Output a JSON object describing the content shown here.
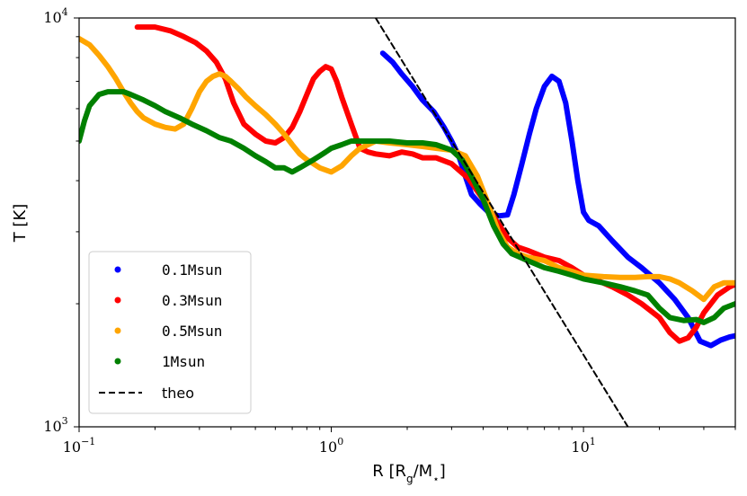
{
  "chart_data": {
    "type": "line",
    "xscale": "log",
    "yscale": "log",
    "xlim": [
      0.1,
      40
    ],
    "ylim": [
      1000,
      10000
    ],
    "xlabel": "R [R",
    "xlabel_sub": "g",
    "xlabel_rest": "/M",
    "xlabel_sub2": "⋆",
    "xlabel_end": "]",
    "ylabel": "T [K]",
    "x_ticks": [
      {
        "value": 0.1,
        "base": "10",
        "exp": "−1"
      },
      {
        "value": 1,
        "base": "10",
        "exp": "0"
      },
      {
        "value": 10,
        "base": "10",
        "exp": "1"
      }
    ],
    "y_ticks": [
      {
        "value": 1000,
        "base": "10",
        "exp": "3"
      },
      {
        "value": 10000,
        "base": "10",
        "exp": "4"
      }
    ],
    "legend_position": "lower-left",
    "series": [
      {
        "name": "0.1Msun",
        "color": "#0000ff",
        "style": "solid",
        "x": [
          1.6,
          1.75,
          1.9,
          2.1,
          2.3,
          2.55,
          2.8,
          3.0,
          3.2,
          3.4,
          3.6,
          3.9,
          4.2,
          4.6,
          5.0,
          5.3,
          5.7,
          6.1,
          6.5,
          7.0,
          7.5,
          8.0,
          8.5,
          9.0,
          9.5,
          10.0,
          10.5,
          11.5,
          13.0,
          15.0,
          17.0,
          20.0,
          23.0,
          26.0,
          29.0,
          32.0,
          35.0,
          38.0,
          40.0
        ],
        "y": [
          8200,
          7800,
          7300,
          6800,
          6300,
          5900,
          5400,
          5000,
          4600,
          4100,
          3700,
          3500,
          3350,
          3280,
          3300,
          3700,
          4400,
          5200,
          6000,
          6800,
          7200,
          7000,
          6200,
          5000,
          4000,
          3350,
          3200,
          3100,
          2850,
          2600,
          2450,
          2250,
          2050,
          1850,
          1620,
          1580,
          1630,
          1660,
          1670
        ]
      },
      {
        "name": "0.3Msun",
        "color": "#ff0000",
        "style": "solid",
        "x": [
          0.17,
          0.2,
          0.23,
          0.26,
          0.29,
          0.32,
          0.35,
          0.38,
          0.41,
          0.45,
          0.5,
          0.55,
          0.6,
          0.65,
          0.7,
          0.75,
          0.8,
          0.85,
          0.9,
          0.95,
          1.0,
          1.05,
          1.1,
          1.2,
          1.3,
          1.4,
          1.5,
          1.7,
          1.9,
          2.1,
          2.3,
          2.6,
          3.0,
          3.5,
          4.0,
          4.5,
          5.0,
          5.5,
          6.0,
          7.0,
          8.0,
          9.0,
          10.0,
          11.0,
          13.0,
          15.0,
          17.0,
          20.0,
          22.0,
          24.0,
          26.0,
          28.0,
          30.0,
          34.0,
          38.0,
          40.0
        ],
        "y": [
          9500,
          9500,
          9300,
          9000,
          8700,
          8300,
          7800,
          7100,
          6200,
          5500,
          5200,
          5000,
          4950,
          5100,
          5400,
          5900,
          6500,
          7100,
          7400,
          7600,
          7500,
          7000,
          6400,
          5500,
          4800,
          4700,
          4650,
          4600,
          4700,
          4650,
          4550,
          4550,
          4400,
          4050,
          3600,
          3200,
          2900,
          2750,
          2700,
          2600,
          2550,
          2450,
          2350,
          2300,
          2200,
          2100,
          2000,
          1850,
          1700,
          1620,
          1650,
          1750,
          1900,
          2100,
          2200,
          2230
        ]
      },
      {
        "name": "0.5Msun",
        "color": "#ffa500",
        "style": "solid",
        "x": [
          0.1,
          0.11,
          0.12,
          0.13,
          0.14,
          0.15,
          0.16,
          0.17,
          0.18,
          0.2,
          0.22,
          0.24,
          0.26,
          0.28,
          0.3,
          0.32,
          0.34,
          0.36,
          0.38,
          0.4,
          0.43,
          0.46,
          0.5,
          0.55,
          0.6,
          0.65,
          0.7,
          0.75,
          0.8,
          0.85,
          0.9,
          1.0,
          1.1,
          1.2,
          1.3,
          1.4,
          1.5,
          1.7,
          2.0,
          2.3,
          2.6,
          3.0,
          3.4,
          3.8,
          4.2,
          4.6,
          5.0,
          5.5,
          6.0,
          7.0,
          8.0,
          9.0,
          10.0,
          12.0,
          14.0,
          16.0,
          18.0,
          20.0,
          22.0,
          24.0,
          27.0,
          30.0,
          33.0,
          36.0,
          40.0
        ],
        "y": [
          8900,
          8600,
          8100,
          7600,
          7100,
          6600,
          6200,
          5900,
          5700,
          5500,
          5400,
          5350,
          5500,
          6000,
          6600,
          7000,
          7200,
          7300,
          7200,
          7000,
          6700,
          6400,
          6100,
          5800,
          5500,
          5200,
          4900,
          4650,
          4500,
          4400,
          4300,
          4200,
          4350,
          4600,
          4800,
          4900,
          5000,
          4950,
          4900,
          4850,
          4800,
          4750,
          4600,
          4100,
          3500,
          3000,
          2750,
          2650,
          2600,
          2550,
          2450,
          2400,
          2350,
          2330,
          2320,
          2320,
          2330,
          2330,
          2300,
          2250,
          2150,
          2050,
          2200,
          2250,
          2250
        ]
      },
      {
        "name": "1Msun",
        "color": "#008000",
        "style": "solid",
        "x": [
          0.1,
          0.105,
          0.11,
          0.115,
          0.12,
          0.13,
          0.14,
          0.15,
          0.16,
          0.18,
          0.2,
          0.22,
          0.25,
          0.28,
          0.32,
          0.36,
          0.4,
          0.45,
          0.5,
          0.55,
          0.6,
          0.65,
          0.7,
          0.75,
          0.8,
          0.85,
          0.9,
          0.95,
          1.0,
          1.1,
          1.2,
          1.3,
          1.5,
          1.7,
          2.0,
          2.3,
          2.6,
          3.0,
          3.3,
          3.6,
          4.0,
          4.4,
          4.8,
          5.2,
          5.6,
          6.0,
          7.0,
          8.0,
          9.0,
          10.0,
          12.0,
          14.0,
          16.0,
          18.0,
          20.0,
          22.0,
          25.0,
          28.0,
          30.0,
          33.0,
          36.0,
          40.0
        ],
        "y": [
          5000,
          5600,
          6100,
          6300,
          6500,
          6600,
          6600,
          6600,
          6500,
          6300,
          6100,
          5900,
          5700,
          5500,
          5300,
          5100,
          5000,
          4800,
          4600,
          4450,
          4300,
          4300,
          4200,
          4300,
          4400,
          4500,
          4600,
          4700,
          4800,
          4900,
          5000,
          5000,
          5000,
          5000,
          4950,
          4950,
          4900,
          4750,
          4500,
          4100,
          3600,
          3100,
          2800,
          2650,
          2600,
          2550,
          2450,
          2400,
          2350,
          2300,
          2250,
          2200,
          2150,
          2100,
          1950,
          1850,
          1820,
          1830,
          1800,
          1850,
          1950,
          2000
        ]
      },
      {
        "name": "theo",
        "color": "#000000",
        "style": "dashed",
        "x": [
          1.5,
          15.0
        ],
        "y": [
          10000,
          1000
        ]
      }
    ]
  }
}
